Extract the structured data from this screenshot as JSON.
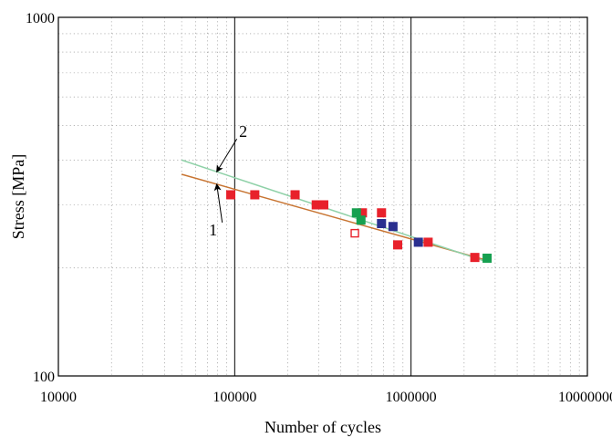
{
  "chart_data": {
    "type": "scatter",
    "title": "",
    "xlabel": "Number of cycles",
    "ylabel": "Stress [MPa]",
    "xscale": "log",
    "yscale": "log",
    "xlim": [
      10000,
      10000000
    ],
    "ylim": [
      100,
      1000
    ],
    "grid": true,
    "legend": "none",
    "x_ticks": [
      {
        "value": 10000,
        "label": "10000"
      },
      {
        "value": 100000,
        "label": "100000"
      },
      {
        "value": 1000000,
        "label": "1000000"
      },
      {
        "value": 10000000,
        "label": "10000000"
      }
    ],
    "y_ticks": [
      {
        "value": 100,
        "label": "100"
      },
      {
        "value": 1000,
        "label": "1000"
      }
    ],
    "series": [
      {
        "color": "#e8212b",
        "marker": "filled-square",
        "points": [
          {
            "x": 95000,
            "y": 320
          },
          {
            "x": 130000,
            "y": 320
          },
          {
            "x": 220000,
            "y": 320
          },
          {
            "x": 290000,
            "y": 300
          },
          {
            "x": 320000,
            "y": 300
          },
          {
            "x": 530000,
            "y": 285
          },
          {
            "x": 680000,
            "y": 285
          },
          {
            "x": 840000,
            "y": 232
          },
          {
            "x": 1250000,
            "y": 236
          },
          {
            "x": 2300000,
            "y": 214
          }
        ]
      },
      {
        "color": "#e8212b",
        "marker": "open-square",
        "points": [
          {
            "x": 480000,
            "y": 250
          }
        ]
      },
      {
        "color": "#16a050",
        "marker": "filled-square",
        "points": [
          {
            "x": 490000,
            "y": 285
          },
          {
            "x": 520000,
            "y": 272
          },
          {
            "x": 2700000,
            "y": 213
          }
        ]
      },
      {
        "color": "#2a2f8f",
        "marker": "filled-square",
        "points": [
          {
            "x": 680000,
            "y": 266
          },
          {
            "x": 790000,
            "y": 261
          },
          {
            "x": 1100000,
            "y": 236
          }
        ]
      }
    ],
    "fit_lines": [
      {
        "label": "1",
        "color": "#c87533",
        "points": [
          {
            "x": 50000,
            "y": 365
          },
          {
            "x": 2700000,
            "y": 210
          }
        ]
      },
      {
        "label": "2",
        "color": "#8fd1a8",
        "points": [
          {
            "x": 50000,
            "y": 400
          },
          {
            "x": 2700000,
            "y": 208
          }
        ]
      }
    ]
  }
}
